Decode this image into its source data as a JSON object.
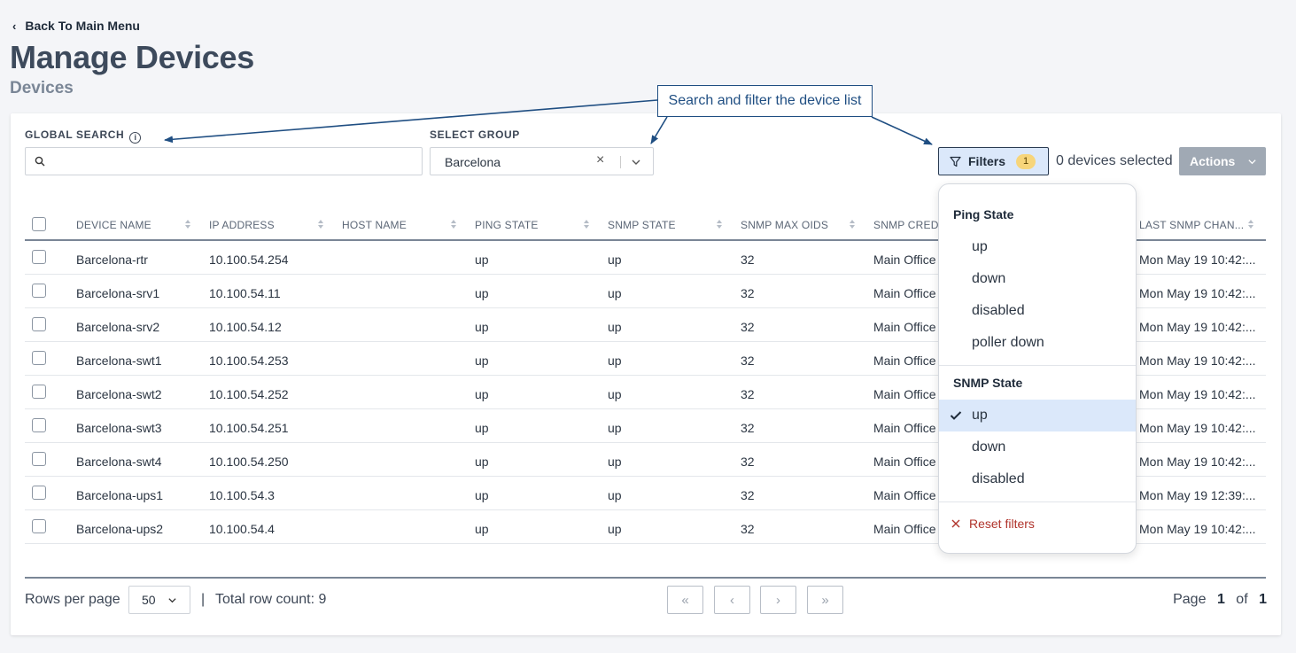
{
  "nav": {
    "back_label": "Back To Main Menu"
  },
  "page": {
    "title": "Manage Devices",
    "subtitle": "Devices"
  },
  "callout": {
    "text": "Search and filter the device list"
  },
  "search": {
    "label": "GLOBAL SEARCH",
    "placeholder": ""
  },
  "group": {
    "label": "SELECT GROUP",
    "value": "Barcelona"
  },
  "toolbar": {
    "filters_label": "Filters",
    "filters_count": "1",
    "selected_text": "0 devices selected",
    "actions_label": "Actions"
  },
  "table": {
    "headers": [
      "DEVICE NAME",
      "IP ADDRESS",
      "HOST NAME",
      "PING STATE",
      "SNMP STATE",
      "SNMP MAX OIDS",
      "SNMP CREDE",
      "LAST SNMP CHAN..."
    ],
    "rows": [
      {
        "name": "Barcelona-rtr",
        "ip": "10.100.54.254",
        "host": "",
        "ping": "up",
        "snmp": "up",
        "oids": "32",
        "cred": "Main Office",
        "last": "Mon May 19 10:42:..."
      },
      {
        "name": "Barcelona-srv1",
        "ip": "10.100.54.11",
        "host": "",
        "ping": "up",
        "snmp": "up",
        "oids": "32",
        "cred": "Main Office",
        "last": "Mon May 19 10:42:..."
      },
      {
        "name": "Barcelona-srv2",
        "ip": "10.100.54.12",
        "host": "",
        "ping": "up",
        "snmp": "up",
        "oids": "32",
        "cred": "Main Office",
        "last": "Mon May 19 10:42:..."
      },
      {
        "name": "Barcelona-swt1",
        "ip": "10.100.54.253",
        "host": "",
        "ping": "up",
        "snmp": "up",
        "oids": "32",
        "cred": "Main Office",
        "last": "Mon May 19 10:42:..."
      },
      {
        "name": "Barcelona-swt2",
        "ip": "10.100.54.252",
        "host": "",
        "ping": "up",
        "snmp": "up",
        "oids": "32",
        "cred": "Main Office",
        "last": "Mon May 19 10:42:..."
      },
      {
        "name": "Barcelona-swt3",
        "ip": "10.100.54.251",
        "host": "",
        "ping": "up",
        "snmp": "up",
        "oids": "32",
        "cred": "Main Office",
        "last": "Mon May 19 10:42:..."
      },
      {
        "name": "Barcelona-swt4",
        "ip": "10.100.54.250",
        "host": "",
        "ping": "up",
        "snmp": "up",
        "oids": "32",
        "cred": "Main Office",
        "last": "Mon May 19 10:42:..."
      },
      {
        "name": "Barcelona-ups1",
        "ip": "10.100.54.3",
        "host": "",
        "ping": "up",
        "snmp": "up",
        "oids": "32",
        "cred": "Main Office",
        "last": "Mon May 19 12:39:..."
      },
      {
        "name": "Barcelona-ups2",
        "ip": "10.100.54.4",
        "host": "",
        "ping": "up",
        "snmp": "up",
        "oids": "32",
        "cred": "Main Office",
        "last": "Mon May 19 10:42:..."
      }
    ]
  },
  "pagination": {
    "rows_per_page_label": "Rows per page",
    "rows_per_page_value": "50",
    "separator": "|",
    "total_text": "Total row count: 9",
    "page_label": "Page",
    "current_page": "1",
    "of_label": "of",
    "total_pages": "1",
    "first_glyph": "«",
    "prev_glyph": "‹",
    "next_glyph": "›",
    "last_glyph": "»"
  },
  "filters_menu": {
    "ping_title": "Ping State",
    "ping_options": [
      "up",
      "down",
      "disabled",
      "poller down"
    ],
    "snmp_title": "SNMP State",
    "snmp_options": [
      "up",
      "down",
      "disabled"
    ],
    "snmp_selected": "up",
    "reset_label": "Reset filters"
  },
  "icons": {
    "back": "chevron-left-icon",
    "info": "info-icon",
    "search": "search-icon",
    "filter": "filter-icon",
    "clear": "close-icon",
    "dropdown": "chevron-down-icon",
    "check": "check-icon",
    "sort": "sort-icon"
  },
  "colors": {
    "accent": "#1f4e82",
    "selected_bg": "#dbe8fa",
    "badge": "#f7d57a",
    "reset": "#b0332b",
    "disabled_button": "#a0a9b4"
  }
}
